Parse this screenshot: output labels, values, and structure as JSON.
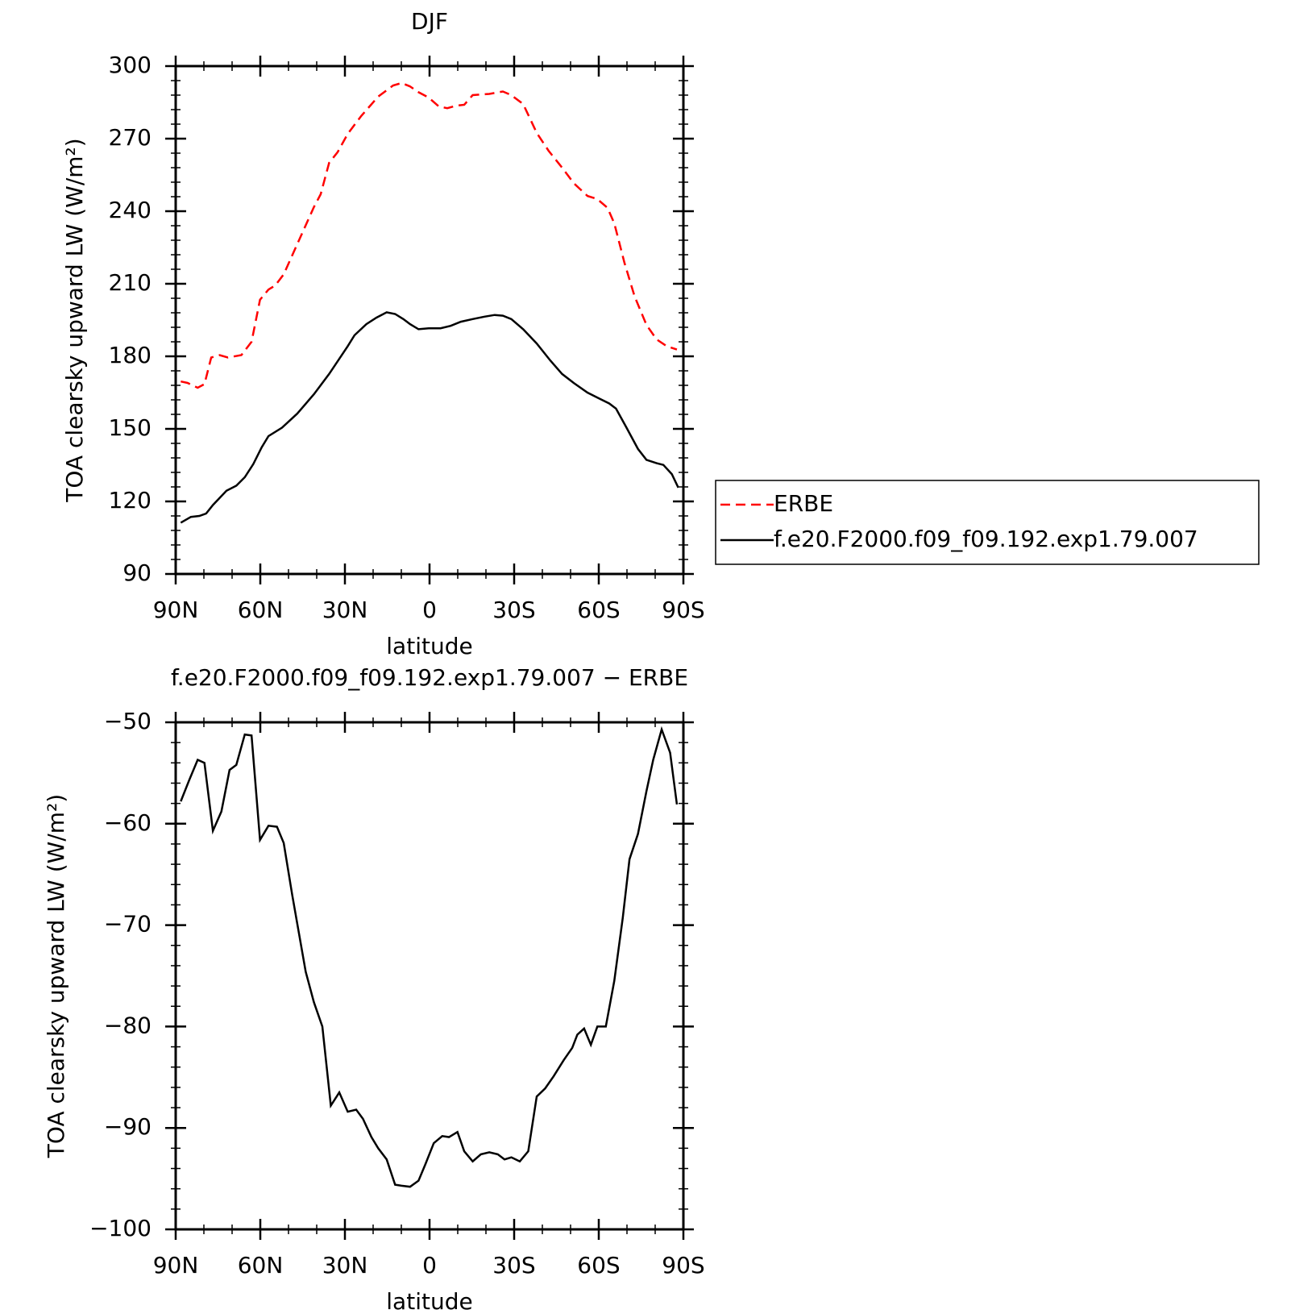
{
  "chart_data": [
    {
      "type": "line",
      "title": "DJF",
      "xlabel": "latitude",
      "ylabel": "TOA clearsky upward LW (W/m²)",
      "xlim": [
        90,
        -90
      ],
      "xticks": [
        {
          "value": 90,
          "label": "90N"
        },
        {
          "value": 60,
          "label": "60N"
        },
        {
          "value": 30,
          "label": "30N"
        },
        0,
        {
          "value": -30,
          "label": "30S"
        },
        {
          "value": -60,
          "label": "60S"
        },
        {
          "value": -90,
          "label": "90S"
        }
      ],
      "xminor_step": 10,
      "ylim": [
        90,
        300
      ],
      "yticks": [
        90,
        120,
        150,
        180,
        210,
        240,
        270,
        300
      ],
      "yminor_step": 6,
      "legend": "right",
      "series": [
        {
          "name": "ERBE",
          "color": "#ff0000",
          "line_style": "dashed",
          "x": [
            88.2,
            85.8,
            82.2,
            79.8,
            77.4,
            74.4,
            71.5,
            66.7,
            63.1,
            60.1,
            57.1,
            54.7,
            51.7,
            45.7,
            41.0,
            38.6,
            35.6,
            32.6,
            29.0,
            24.2,
            18.2,
            12.9,
            9.9,
            6.9,
            3.9,
            0.3,
            -3.3,
            -6.3,
            -9.3,
            -12.3,
            -15.3,
            -21.2,
            -26,
            -29,
            -33.2,
            -38,
            -42.2,
            -47,
            -51.2,
            -56,
            -59.5,
            -63.1,
            -65.5,
            -69.1,
            -72.7,
            -76.9,
            -80.5,
            -84.1,
            -87.7
          ],
          "values": [
            169.6,
            169,
            167,
            168.5,
            179.5,
            180.5,
            179.5,
            180.5,
            186,
            203.4,
            207.6,
            209.3,
            213.9,
            229.5,
            241.7,
            247,
            260,
            264.4,
            272,
            279.4,
            287.4,
            292,
            293,
            291.6,
            289.2,
            287,
            283.3,
            282.6,
            283.6,
            284,
            288,
            288.5,
            289.5,
            288,
            284.3,
            272.4,
            265,
            258,
            251.5,
            246.3,
            245,
            241.4,
            235,
            218.7,
            204.8,
            193,
            187,
            184.2,
            182.8
          ]
        },
        {
          "name": "f.e20.F2000.f09_f09.192.exp1.79.007",
          "color": "#000000",
          "line_style": "solid",
          "x": [
            88.2,
            84.6,
            81.6,
            79.2,
            76.8,
            72.0,
            68.5,
            65.5,
            62.5,
            59.5,
            57.1,
            52.3,
            46.9,
            41.0,
            35.6,
            29.0,
            26.6,
            22.4,
            18.8,
            15.2,
            12.2,
            9.3,
            6.9,
            3.9,
            0.3,
            -3.9,
            -7.5,
            -11.1,
            -15.3,
            -19.5,
            -23.1,
            -26,
            -29,
            -33.2,
            -38,
            -42.8,
            -47,
            -51.2,
            -56,
            -60.1,
            -63.7,
            -66.1,
            -69.7,
            -73.9,
            -76.9,
            -80.5,
            -82.9,
            -85.9,
            -88.2
          ],
          "values": [
            111.2,
            113.6,
            114,
            115,
            118.5,
            124.4,
            126.5,
            130,
            135.4,
            142.4,
            147,
            150.5,
            156.3,
            164.3,
            172.7,
            184.2,
            188.7,
            193.3,
            196,
            198.2,
            197.5,
            195.4,
            193.3,
            191.2,
            191.6,
            191.6,
            192.6,
            194.3,
            195.4,
            196.4,
            197.1,
            196.8,
            195.4,
            191.2,
            185.3,
            178.3,
            172.7,
            168.9,
            165,
            162.6,
            160.5,
            158.4,
            150.8,
            141.7,
            137.2,
            135.8,
            135.1,
            131.3,
            125.7
          ]
        }
      ]
    },
    {
      "type": "line",
      "title": "f.e20.F2000.f09_f09.192.exp1.79.007 − ERBE",
      "xlabel": "latitude",
      "ylabel": "TOA clearsky upward LW (W/m²)",
      "xlim": [
        90,
        -90
      ],
      "xticks": [
        {
          "value": 90,
          "label": "90N"
        },
        {
          "value": 60,
          "label": "60N"
        },
        {
          "value": 30,
          "label": "30N"
        },
        0,
        {
          "value": -30,
          "label": "30S"
        },
        {
          "value": -60,
          "label": "60S"
        },
        {
          "value": -90,
          "label": "90S"
        }
      ],
      "xminor_step": 10,
      "ylim": [
        -100,
        -50
      ],
      "yticks": [
        {
          "value": -100,
          "label": "−100"
        },
        {
          "value": -90,
          "label": "−90"
        },
        {
          "value": -80,
          "label": "−80"
        },
        {
          "value": -70,
          "label": "−70"
        },
        {
          "value": -60,
          "label": "−60"
        },
        {
          "value": -50,
          "label": "−50"
        }
      ],
      "yminor_step": 2,
      "series": [
        {
          "color": "#000000",
          "line_style": "solid",
          "x": [
            88.2,
            85.2,
            82.2,
            79.8,
            76.8,
            73.8,
            70.9,
            68.5,
            65.5,
            63.1,
            60.1,
            57.1,
            54.1,
            51.7,
            48.7,
            43.9,
            41.0,
            38,
            35,
            32,
            29,
            26,
            23.6,
            20.6,
            18.2,
            15.2,
            12.2,
            9.9,
            6.9,
            3.9,
            1.5,
            -1.5,
            -4.5,
            -6.9,
            -9.9,
            -12.3,
            -15.3,
            -18.2,
            -21.2,
            -24.2,
            -26.6,
            -29,
            -32,
            -35,
            -38,
            -41,
            -44,
            -47.6,
            -50.6,
            -52.4,
            -54.8,
            -57.2,
            -59.5,
            -62.5,
            -65.5,
            -68.5,
            -70.9,
            -73.9,
            -76.9,
            -79.3,
            -82.3,
            -85.3,
            -87.7
          ],
          "values": [
            -57.8,
            -55.7,
            -53.7,
            -54,
            -60.7,
            -58.8,
            -54.7,
            -54.2,
            -51.2,
            -51.3,
            -61.6,
            -60.2,
            -60.3,
            -61.9,
            -67,
            -74.6,
            -77.6,
            -80,
            -87.8,
            -86.5,
            -88.4,
            -88.2,
            -89.1,
            -90.9,
            -92,
            -93.1,
            -95.6,
            -95.7,
            -95.8,
            -95.2,
            -93.6,
            -91.5,
            -90.8,
            -90.9,
            -90.4,
            -92.3,
            -93.3,
            -92.6,
            -92.4,
            -92.6,
            -93.1,
            -92.9,
            -93.3,
            -92.3,
            -86.9,
            -86.1,
            -84.9,
            -83.3,
            -82.1,
            -80.8,
            -80.2,
            -81.8,
            -80,
            -80,
            -75.5,
            -69.3,
            -63.5,
            -61,
            -56.8,
            -53.7,
            -50.7,
            -53,
            -58.1
          ]
        }
      ]
    }
  ]
}
